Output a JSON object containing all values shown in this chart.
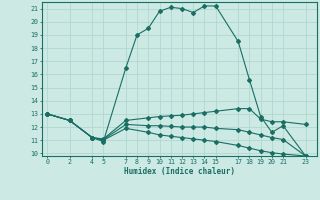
{
  "xlabel": "Humidex (Indice chaleur)",
  "bg_color": "#cce9e4",
  "grid_color": "#b0d8d0",
  "line_color": "#1a6e64",
  "xlim": [
    -0.5,
    24
  ],
  "ylim": [
    9.8,
    21.5
  ],
  "xticks": [
    0,
    2,
    4,
    5,
    7,
    8,
    9,
    10,
    11,
    12,
    13,
    14,
    15,
    17,
    18,
    19,
    20,
    21,
    23
  ],
  "yticks": [
    10,
    11,
    12,
    13,
    14,
    15,
    16,
    17,
    18,
    19,
    20,
    21
  ],
  "line1_x": [
    0,
    2,
    4,
    5,
    7,
    8,
    9,
    10,
    11,
    12,
    13,
    14,
    15,
    17,
    18,
    19,
    20,
    21,
    23
  ],
  "line1_y": [
    13.0,
    12.5,
    11.2,
    10.9,
    16.5,
    19.0,
    19.5,
    20.8,
    21.1,
    21.0,
    20.7,
    21.2,
    21.2,
    18.5,
    15.6,
    12.8,
    11.6,
    12.1,
    9.8
  ],
  "line2_x": [
    0,
    2,
    4,
    5,
    7,
    9,
    10,
    11,
    12,
    13,
    14,
    15,
    17,
    18,
    19,
    20,
    21,
    23
  ],
  "line2_y": [
    13.0,
    12.5,
    11.2,
    11.1,
    12.5,
    12.7,
    12.8,
    12.85,
    12.9,
    13.0,
    13.1,
    13.2,
    13.4,
    13.4,
    12.6,
    12.4,
    12.4,
    12.2
  ],
  "line3_x": [
    0,
    2,
    4,
    5,
    7,
    9,
    10,
    11,
    12,
    13,
    14,
    15,
    17,
    18,
    19,
    20,
    21,
    23
  ],
  "line3_y": [
    13.0,
    12.5,
    11.2,
    11.0,
    11.9,
    11.6,
    11.4,
    11.3,
    11.2,
    11.1,
    11.0,
    10.9,
    10.6,
    10.4,
    10.2,
    10.05,
    9.95,
    9.8
  ],
  "line4_x": [
    0,
    2,
    4,
    5,
    7,
    9,
    10,
    11,
    12,
    13,
    14,
    15,
    17,
    18,
    19,
    20,
    21,
    23
  ],
  "line4_y": [
    13.0,
    12.5,
    11.2,
    11.05,
    12.2,
    12.1,
    12.1,
    12.05,
    12.0,
    12.0,
    12.0,
    11.9,
    11.8,
    11.6,
    11.4,
    11.2,
    11.05,
    9.8
  ]
}
